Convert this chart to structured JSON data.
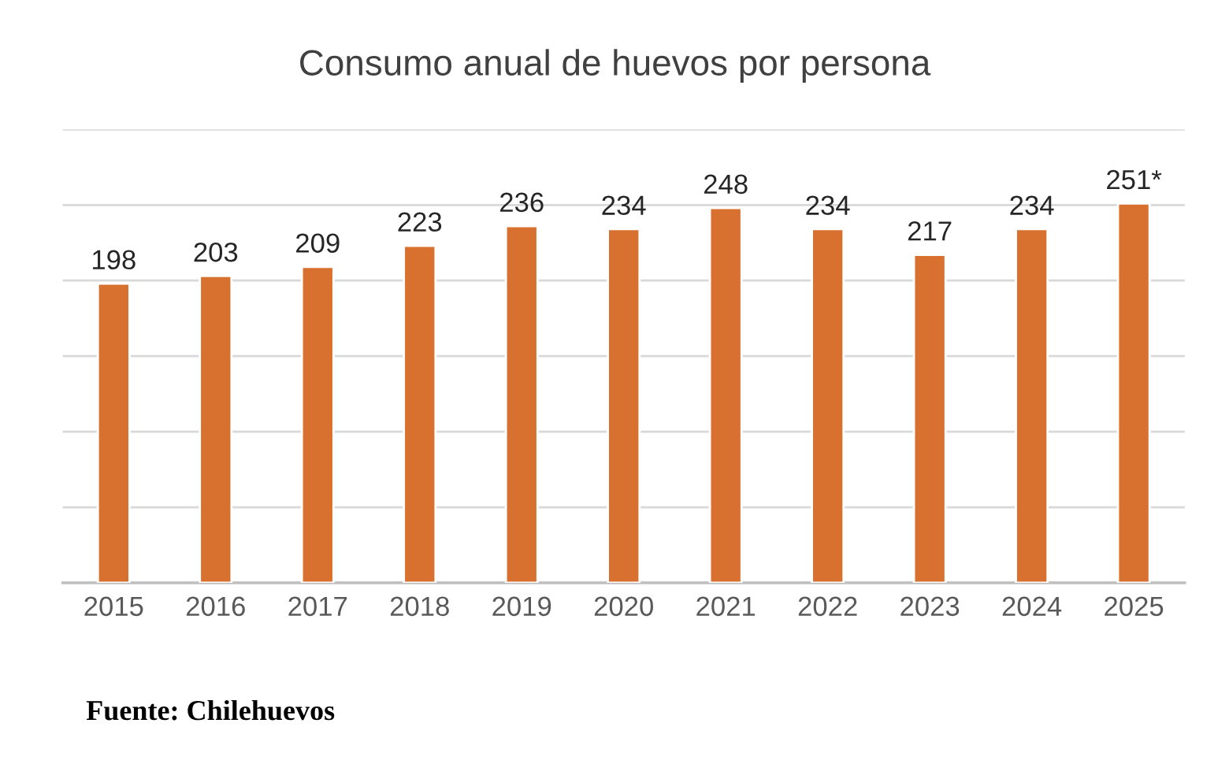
{
  "chart_data": {
    "type": "bar",
    "title": "Consumo anual de huevos por persona",
    "categories": [
      "2015",
      "2016",
      "2017",
      "2018",
      "2019",
      "2020",
      "2021",
      "2022",
      "2023",
      "2024",
      "2025"
    ],
    "values": [
      198,
      203,
      209,
      223,
      236,
      234,
      248,
      234,
      217,
      234,
      251
    ],
    "value_labels": [
      "198",
      "203",
      "209",
      "223",
      "236",
      "234",
      "248",
      "234",
      "217",
      "234",
      "251*"
    ],
    "color": "#d8702f",
    "ylim": [
      0,
      300
    ],
    "yticks": [
      {
        "value": 0,
        "label": null
      },
      {
        "value": 50,
        "label": null
      },
      {
        "value": 100,
        "label": null
      },
      {
        "value": 150,
        "label": null
      },
      {
        "value": 200,
        "label": null
      },
      {
        "value": 250,
        "label": null
      },
      {
        "value": 300,
        "label": null
      }
    ],
    "grid": "y",
    "tick_labels": "x",
    "annotations": [
      "Fuente: Chilehuevos"
    ]
  }
}
